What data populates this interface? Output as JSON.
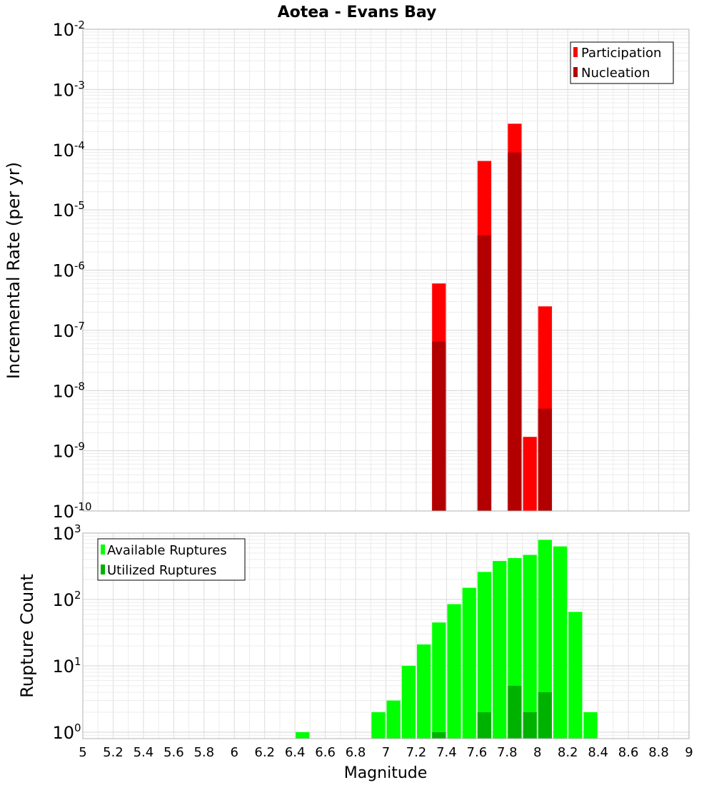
{
  "chart_data": [
    {
      "type": "bar",
      "title": "Aotea - Evans Bay",
      "ylabel": "Incremental Rate (per yr)",
      "yscale": "log",
      "ylim": [
        1e-10,
        0.01
      ],
      "y_tick_exponents": [
        "-10",
        "-9",
        "-8",
        "-7",
        "-6",
        "-5",
        "-4",
        "-3",
        "-2"
      ],
      "grid": true,
      "legend_position": "top-right",
      "series": [
        {
          "name": "Participation",
          "color": "#ff0000",
          "x": [
            7.35,
            7.65,
            7.85,
            7.95,
            8.05
          ],
          "values": [
            6e-07,
            6.5e-05,
            0.00027,
            1.7e-09,
            2.5e-07
          ]
        },
        {
          "name": "Nucleation",
          "color": "#b20000",
          "x": [
            7.35,
            7.65,
            7.85,
            8.05
          ],
          "values": [
            6.5e-08,
            3.8e-06,
            9e-05,
            5e-09
          ]
        }
      ]
    },
    {
      "type": "bar",
      "ylabel": "Rupture Count",
      "xlabel": "Magnitude",
      "yscale": "log",
      "ylim": [
        0.8,
        1000
      ],
      "y_tick_exponents": [
        "0",
        "1",
        "2",
        "3"
      ],
      "xlim": [
        5,
        9
      ],
      "x_ticks": [
        "5",
        "5.2",
        "5.4",
        "5.6",
        "5.8",
        "6",
        "6.2",
        "6.4",
        "6.6",
        "6.8",
        "7",
        "7.2",
        "7.4",
        "7.6",
        "7.8",
        "8",
        "8.2",
        "8.4",
        "8.6",
        "8.8",
        "9"
      ],
      "grid": true,
      "legend_position": "top-left",
      "series": [
        {
          "name": "Available Ruptures",
          "color": "#00ff00",
          "x": [
            6.45,
            6.95,
            7.05,
            7.15,
            7.25,
            7.35,
            7.45,
            7.55,
            7.65,
            7.75,
            7.85,
            7.95,
            8.05,
            8.15,
            8.25,
            8.35
          ],
          "values": [
            1,
            2,
            3,
            10,
            21,
            45,
            85,
            150,
            260,
            380,
            420,
            470,
            790,
            630,
            65,
            2
          ]
        },
        {
          "name": "Utilized Ruptures",
          "color": "#00b200",
          "x": [
            7.35,
            7.65,
            7.85,
            7.95,
            8.05
          ],
          "values": [
            1,
            2,
            5,
            2,
            4
          ]
        }
      ]
    }
  ]
}
